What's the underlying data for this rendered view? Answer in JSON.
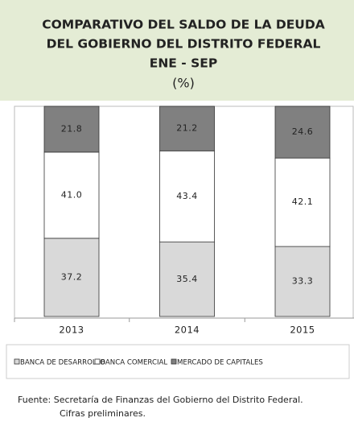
{
  "chart_data": {
    "type": "bar",
    "stacked": true,
    "title": [
      "COMPARATIVO DEL SALDO DE LA DEUDA",
      "DEL GOBIERNO DEL DISTRITO FEDERAL",
      "ENE - SEP"
    ],
    "subtitle": "(%)",
    "categories": [
      "2013",
      "2014",
      "2015"
    ],
    "series": [
      {
        "name": "BANCA DE DESARROLLO",
        "color": "#d9d9d9",
        "values": [
          37.2,
          35.4,
          33.3
        ],
        "value_labels": [
          "37.2",
          "35.4",
          "33.3"
        ]
      },
      {
        "name": "BANCA COMERCIAL",
        "color": "#ffffff",
        "values": [
          41.0,
          43.4,
          42.1
        ],
        "value_labels": [
          "41.0",
          "43.4",
          "42.1"
        ]
      },
      {
        "name": "MERCADO DE CAPITALES",
        "color": "#808080",
        "values": [
          21.8,
          21.2,
          24.6
        ],
        "value_labels": [
          "21.8",
          "21.2",
          "24.6"
        ]
      }
    ],
    "ylim": [
      0,
      100
    ],
    "notes": [
      "Fuente: Secretaría de Finanzas del Gobierno del Distrito Federal.",
      "Cifras preliminares."
    ]
  }
}
